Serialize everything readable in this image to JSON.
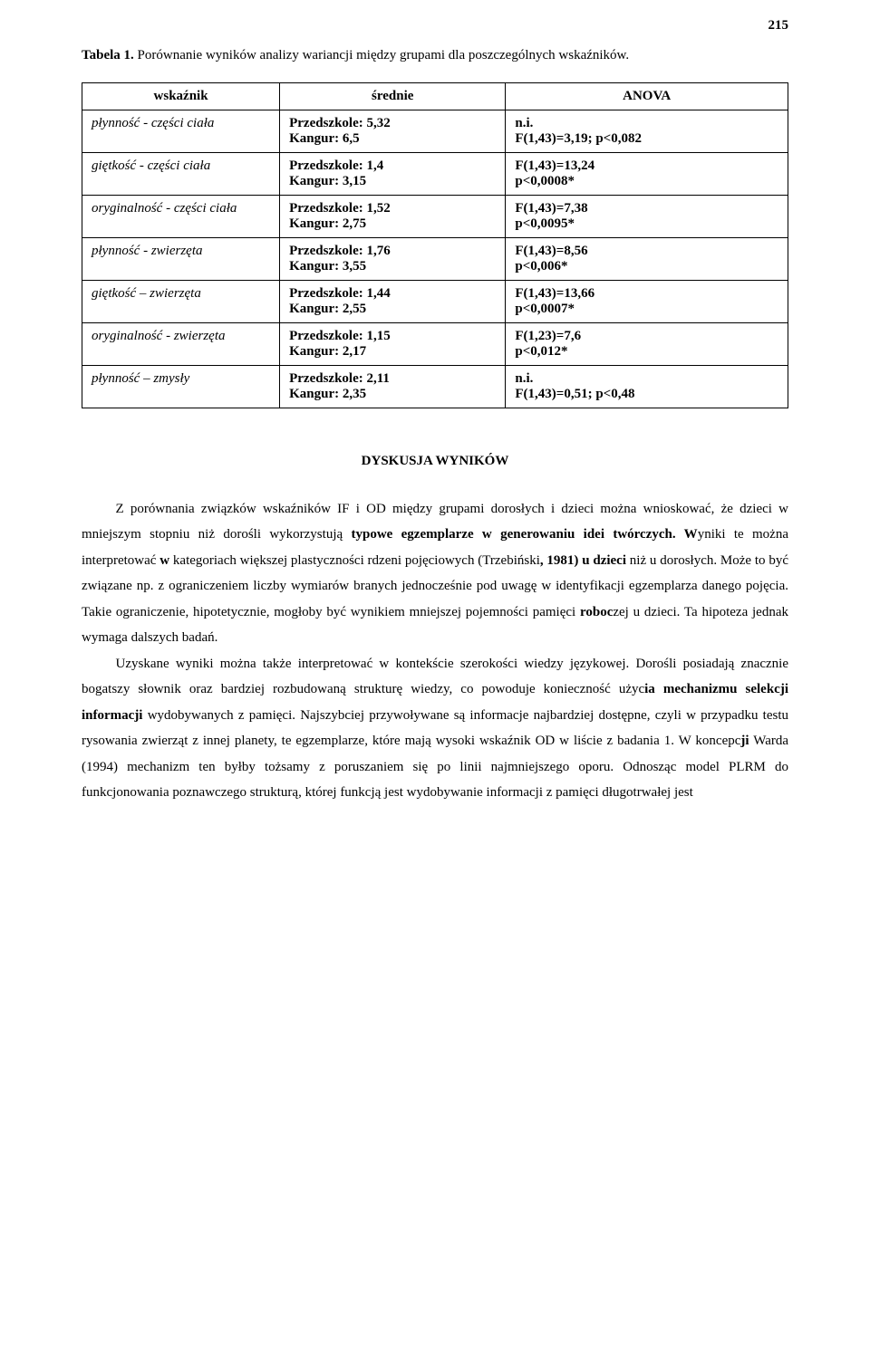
{
  "page_number": "215",
  "table_caption_label": "Tabela 1.",
  "table_caption_text": " Porównanie wyników analizy wariancji między grupami dla poszczególnych wskaźników.",
  "table": {
    "headers": {
      "c1": "wskaźnik",
      "c2": "średnie",
      "c3": "ANOVA"
    },
    "rows": [
      {
        "label": "płynność - części ciała",
        "mean_l1": "Przedszkole: 5,32",
        "mean_l2": "Kangur: 6,5",
        "anova_l1": "n.i.",
        "anova_l2": "F(1,43)=3,19; p<0,082"
      },
      {
        "label": "giętkość - części ciała",
        "mean_l1": "Przedszkole: 1,4",
        "mean_l2": "Kangur: 3,15",
        "anova_l1": "F(1,43)=13,24",
        "anova_l2": "p<0,0008*"
      },
      {
        "label": "oryginalność - części ciała",
        "mean_l1": "Przedszkole: 1,52",
        "mean_l2": "Kangur: 2,75",
        "anova_l1": "F(1,43)=7,38",
        "anova_l2": "p<0,0095*"
      },
      {
        "label": "płynność - zwierzęta",
        "mean_l1": "Przedszkole: 1,76",
        "mean_l2": "Kangur: 3,55",
        "anova_l1": "F(1,43)=8,56",
        "anova_l2": "p<0,006*"
      },
      {
        "label": "giętkość – zwierzęta",
        "mean_l1": "Przedszkole: 1,44",
        "mean_l2": "Kangur: 2,55",
        "anova_l1": "F(1,43)=13,66",
        "anova_l2": "p<0,0007*"
      },
      {
        "label": "oryginalność - zwierzęta",
        "mean_l1": "Przedszkole: 1,15",
        "mean_l2": "Kangur: 2,17",
        "anova_l1": "F(1,23)=7,6",
        "anova_l2": "p<0,012*"
      },
      {
        "label": "płynność – zmysły",
        "mean_l1": "Przedszkole: 2,11",
        "mean_l2": "Kangur: 2,35",
        "anova_l1": "n.i.",
        "anova_l2": "F(1,43)=0,51; p<0,48"
      }
    ]
  },
  "section_heading": "DYSKUSJA WYNIKÓW",
  "para1": {
    "t1": "Z porównania związków wskaźników IF i OD między grupami dorosłych i dzieci można wnioskować, że dzieci w mniejszym stopniu niż dorośli wykorzystują ",
    "b1": "typowe egzemplarze w generowaniu idei twórczych. W",
    "t2": "yniki te można interpretować ",
    "b2": "w",
    "t3": " kategoriach większej plastyczności rdzeni pojęciowych (Trzebiński",
    "b3": ", 1981) u dzieci",
    "t4": " niż u dorosłych. Może to być związane np. z ograniczeniem liczby wymiarów branych jednocześnie pod uwagę w identyfikacji egzemplarza danego pojęcia. Takie ograniczenie, hipotetycznie, mogłoby być wynikiem mniejszej pojemności pamięci ",
    "b4": "roboc",
    "t5": "zej u dzieci. Ta hipoteza jednak wymaga dalszych badań."
  },
  "para2": {
    "t1": "Uzyskane wyniki można także interpretować w kontekście szerokości wiedzy językowej. Dorośli posiadają znacznie bogatszy słownik oraz bardziej rozbudowaną strukturę wiedzy, co powoduje konieczność użyc",
    "b1": "ia mechanizmu selekcji informacji",
    "t2": " wydobywanych z pamięci. Najszybciej przywoływane są informacje najbardziej dostępne, czyli w przypadku testu rysowania zwierząt z innej planety, te egzemplarze, które mają wysoki wskaźnik OD w liście z badania 1. W koncepc",
    "b2": "ji",
    "t3": " Warda (1994) mechanizm ten byłby tożsamy z poruszaniem się po linii najmniejszego oporu. Odnosząc model PLRM do funkcjonowania poznawczego strukturą, której funkcją jest wydobywanie informacji z pamięci długotrwałej jest"
  }
}
